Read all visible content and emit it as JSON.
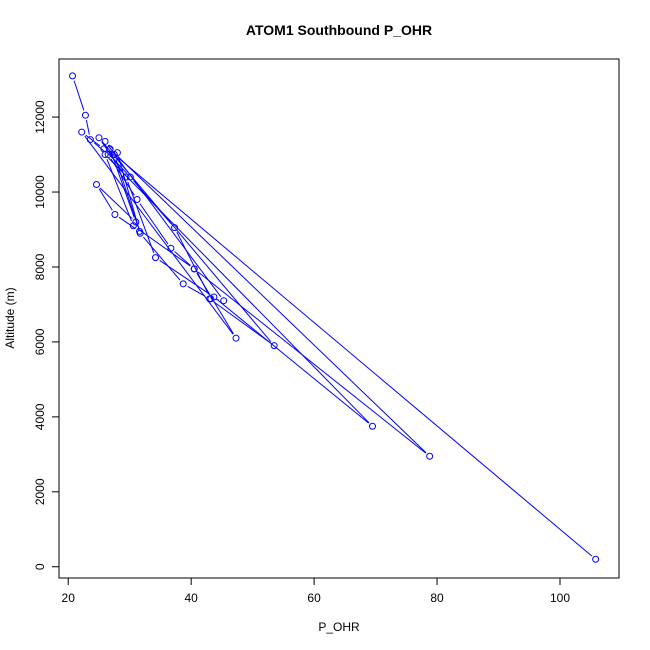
{
  "chart_data": {
    "type": "line",
    "title": "ATOM1 Southbound P_OHR",
    "xlabel": "P_OHR",
    "ylabel": "Altitude (m)",
    "xlim": [
      18.5,
      109.6
    ],
    "ylim": [
      -300,
      13550
    ],
    "xticks": [
      20,
      40,
      60,
      80,
      100
    ],
    "xtick_labels": [
      "20",
      "40",
      "60",
      "80",
      "100"
    ],
    "yticks": [
      0,
      2000,
      4000,
      6000,
      8000,
      10000,
      12000
    ],
    "ytick_labels": [
      "0",
      "2000",
      "4000",
      "6000",
      "8000",
      "10000",
      "12000"
    ],
    "grid": false,
    "legend": "none",
    "color": "#0000ff",
    "series": [
      {
        "x": [
          20.7,
          22.8,
          23.6,
          26.5,
          31.2,
          36.7,
          40.5,
          47.3,
          22.2,
          25.8,
          30.1,
          37.3,
          43.2,
          45.3,
          26.0,
          28.0,
          31.7,
          38.7,
          43.0,
          53.5,
          25.0,
          29.4,
          34.2,
          43.7,
          69.5,
          26.0,
          30.6,
          40.5,
          78.8,
          26.8,
          31.0,
          24.6,
          27.6,
          31.6,
          27.5,
          105.8
        ],
        "y": [
          13100,
          12050,
          11400,
          11000,
          9800,
          8500,
          7950,
          6100,
          11600,
          11150,
          10400,
          9050,
          7150,
          7100,
          11350,
          11050,
          8900,
          7550,
          7150,
          5900,
          11450,
          10400,
          8250,
          7200,
          3750,
          11000,
          9100,
          7950,
          2950,
          11150,
          9200,
          10200,
          9400,
          8950,
          11000,
          200
        ]
      }
    ]
  }
}
